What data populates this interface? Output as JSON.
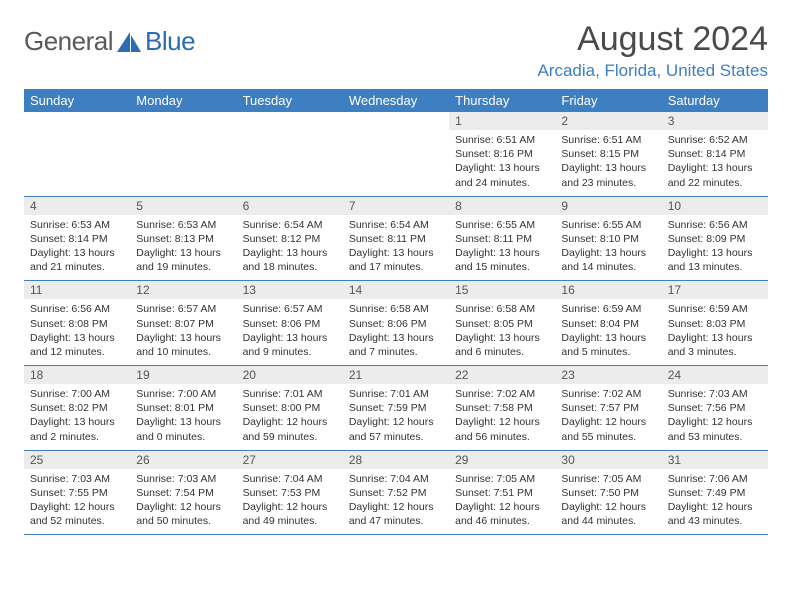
{
  "brand": {
    "general": "General",
    "blue": "Blue"
  },
  "title": "August 2024",
  "location": "Arcadia, Florida, United States",
  "colors": {
    "header_bg": "#3d7fc0",
    "header_text": "#ffffff",
    "daynum_bg": "#ececec",
    "text": "#333333",
    "brand_gray": "#5a5a5a",
    "brand_blue": "#2a6db3"
  },
  "weekdays": [
    "Sunday",
    "Monday",
    "Tuesday",
    "Wednesday",
    "Thursday",
    "Friday",
    "Saturday"
  ],
  "weeks": [
    [
      {
        "empty": true
      },
      {
        "empty": true
      },
      {
        "empty": true
      },
      {
        "empty": true
      },
      {
        "day": "1",
        "sunrise": "6:51 AM",
        "sunset": "8:16 PM",
        "dl_h": "13",
        "dl_m": "24"
      },
      {
        "day": "2",
        "sunrise": "6:51 AM",
        "sunset": "8:15 PM",
        "dl_h": "13",
        "dl_m": "23"
      },
      {
        "day": "3",
        "sunrise": "6:52 AM",
        "sunset": "8:14 PM",
        "dl_h": "13",
        "dl_m": "22"
      }
    ],
    [
      {
        "day": "4",
        "sunrise": "6:53 AM",
        "sunset": "8:14 PM",
        "dl_h": "13",
        "dl_m": "21"
      },
      {
        "day": "5",
        "sunrise": "6:53 AM",
        "sunset": "8:13 PM",
        "dl_h": "13",
        "dl_m": "19"
      },
      {
        "day": "6",
        "sunrise": "6:54 AM",
        "sunset": "8:12 PM",
        "dl_h": "13",
        "dl_m": "18"
      },
      {
        "day": "7",
        "sunrise": "6:54 AM",
        "sunset": "8:11 PM",
        "dl_h": "13",
        "dl_m": "17"
      },
      {
        "day": "8",
        "sunrise": "6:55 AM",
        "sunset": "8:11 PM",
        "dl_h": "13",
        "dl_m": "15"
      },
      {
        "day": "9",
        "sunrise": "6:55 AM",
        "sunset": "8:10 PM",
        "dl_h": "13",
        "dl_m": "14"
      },
      {
        "day": "10",
        "sunrise": "6:56 AM",
        "sunset": "8:09 PM",
        "dl_h": "13",
        "dl_m": "13"
      }
    ],
    [
      {
        "day": "11",
        "sunrise": "6:56 AM",
        "sunset": "8:08 PM",
        "dl_h": "13",
        "dl_m": "12"
      },
      {
        "day": "12",
        "sunrise": "6:57 AM",
        "sunset": "8:07 PM",
        "dl_h": "13",
        "dl_m": "10"
      },
      {
        "day": "13",
        "sunrise": "6:57 AM",
        "sunset": "8:06 PM",
        "dl_h": "13",
        "dl_m": "9"
      },
      {
        "day": "14",
        "sunrise": "6:58 AM",
        "sunset": "8:06 PM",
        "dl_h": "13",
        "dl_m": "7"
      },
      {
        "day": "15",
        "sunrise": "6:58 AM",
        "sunset": "8:05 PM",
        "dl_h": "13",
        "dl_m": "6"
      },
      {
        "day": "16",
        "sunrise": "6:59 AM",
        "sunset": "8:04 PM",
        "dl_h": "13",
        "dl_m": "5"
      },
      {
        "day": "17",
        "sunrise": "6:59 AM",
        "sunset": "8:03 PM",
        "dl_h": "13",
        "dl_m": "3"
      }
    ],
    [
      {
        "day": "18",
        "sunrise": "7:00 AM",
        "sunset": "8:02 PM",
        "dl_h": "13",
        "dl_m": "2"
      },
      {
        "day": "19",
        "sunrise": "7:00 AM",
        "sunset": "8:01 PM",
        "dl_h": "13",
        "dl_m": "0"
      },
      {
        "day": "20",
        "sunrise": "7:01 AM",
        "sunset": "8:00 PM",
        "dl_h": "12",
        "dl_m": "59"
      },
      {
        "day": "21",
        "sunrise": "7:01 AM",
        "sunset": "7:59 PM",
        "dl_h": "12",
        "dl_m": "57"
      },
      {
        "day": "22",
        "sunrise": "7:02 AM",
        "sunset": "7:58 PM",
        "dl_h": "12",
        "dl_m": "56"
      },
      {
        "day": "23",
        "sunrise": "7:02 AM",
        "sunset": "7:57 PM",
        "dl_h": "12",
        "dl_m": "55"
      },
      {
        "day": "24",
        "sunrise": "7:03 AM",
        "sunset": "7:56 PM",
        "dl_h": "12",
        "dl_m": "53"
      }
    ],
    [
      {
        "day": "25",
        "sunrise": "7:03 AM",
        "sunset": "7:55 PM",
        "dl_h": "12",
        "dl_m": "52"
      },
      {
        "day": "26",
        "sunrise": "7:03 AM",
        "sunset": "7:54 PM",
        "dl_h": "12",
        "dl_m": "50"
      },
      {
        "day": "27",
        "sunrise": "7:04 AM",
        "sunset": "7:53 PM",
        "dl_h": "12",
        "dl_m": "49"
      },
      {
        "day": "28",
        "sunrise": "7:04 AM",
        "sunset": "7:52 PM",
        "dl_h": "12",
        "dl_m": "47"
      },
      {
        "day": "29",
        "sunrise": "7:05 AM",
        "sunset": "7:51 PM",
        "dl_h": "12",
        "dl_m": "46"
      },
      {
        "day": "30",
        "sunrise": "7:05 AM",
        "sunset": "7:50 PM",
        "dl_h": "12",
        "dl_m": "44"
      },
      {
        "day": "31",
        "sunrise": "7:06 AM",
        "sunset": "7:49 PM",
        "dl_h": "12",
        "dl_m": "43"
      }
    ]
  ]
}
